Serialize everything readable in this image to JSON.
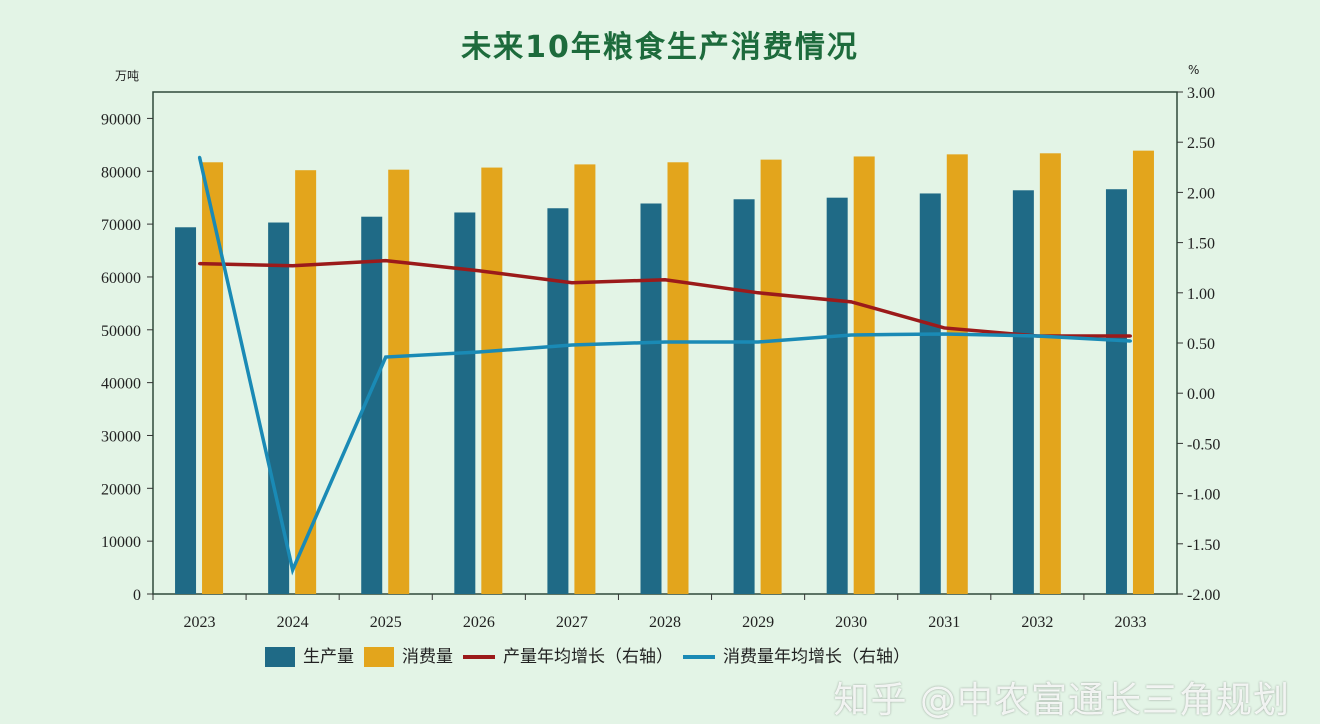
{
  "chart_data": {
    "type": "bar",
    "title": "未来10年粮食生产消费情况",
    "left_axis_unit": "万吨",
    "right_axis_unit": "%",
    "categories": [
      "2023",
      "2024",
      "2025",
      "2026",
      "2027",
      "2028",
      "2029",
      "2030",
      "2031",
      "2032",
      "2033"
    ],
    "ylim_left": [
      0,
      95000
    ],
    "yticks_left": [
      "0",
      "10000",
      "20000",
      "30000",
      "40000",
      "50000",
      "60000",
      "70000",
      "80000",
      "90000"
    ],
    "ylim_right": [
      -2.0,
      3.0
    ],
    "yticks_right": [
      "-2.00",
      "-1.50",
      "-1.00",
      "-0.50",
      "0.00",
      "0.50",
      "1.00",
      "1.50",
      "2.00",
      "2.50",
      "3.00"
    ],
    "grid": false,
    "legend_position": "bottom",
    "series": [
      {
        "name": "生产量",
        "kind": "bar",
        "axis": "left",
        "color": "#1f6a86",
        "values": [
          69400,
          70300,
          71400,
          72200,
          73000,
          73900,
          74700,
          75000,
          75800,
          76400,
          76600
        ]
      },
      {
        "name": "消费量",
        "kind": "bar",
        "axis": "left",
        "color": "#e3a51c",
        "values": [
          81700,
          80200,
          80300,
          80700,
          81300,
          81700,
          82200,
          82800,
          83200,
          83400,
          83900
        ]
      },
      {
        "name": "产量年均增长（右轴）",
        "kind": "line",
        "axis": "right",
        "color": "#9b1a1a",
        "values": [
          1.29,
          1.27,
          1.32,
          1.22,
          1.1,
          1.13,
          1.0,
          0.91,
          0.65,
          0.57,
          0.57
        ]
      },
      {
        "name": "消费量年均增长（右轴）",
        "kind": "line",
        "axis": "right",
        "color": "#1a8ab5",
        "values": [
          2.35,
          -1.76,
          0.36,
          0.41,
          0.48,
          0.51,
          0.51,
          0.58,
          0.59,
          0.57,
          0.52
        ]
      }
    ]
  },
  "watermark": "知乎 @中农富通长三角规划"
}
